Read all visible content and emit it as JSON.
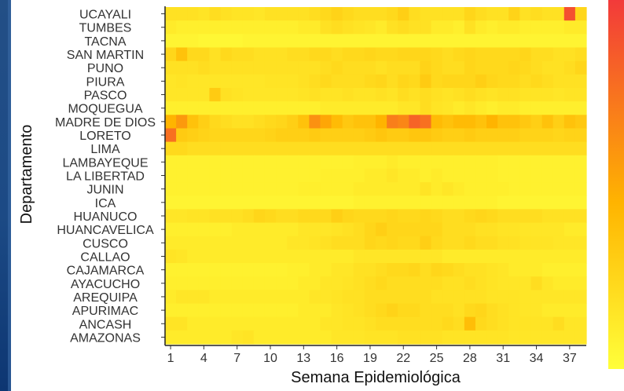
{
  "chart_data": {
    "type": "heatmap",
    "ylabel": "Departamento",
    "xlabel": "Semana Epidemiológica",
    "y_categories": [
      "UCAYALI",
      "TUMBES",
      "TACNA",
      "SAN MARTIN",
      "PUNO",
      "PIURA",
      "PASCO",
      "MOQUEGUA",
      "MADRE DE DIOS",
      "LORETO",
      "LIMA",
      "LAMBAYEQUE",
      "LA LIBERTAD",
      "JUNIN",
      "ICA",
      "HUANUCO",
      "HUANCAVELICA",
      "CUSCO",
      "CALLAO",
      "CAJAMARCA",
      "AYACUCHO",
      "AREQUIPA",
      "APURIMAC",
      "ANCASH",
      "AMAZONAS"
    ],
    "x_range": [
      1,
      38
    ],
    "x_ticks": [
      "1",
      "4",
      "7",
      "10",
      "13",
      "16",
      "19",
      "22",
      "25",
      "28",
      "31",
      "34",
      "37"
    ],
    "colors": {
      "low": "#ffff3a",
      "mid": "#ffb400",
      "high": "#f23a3a",
      "panel": "#1d4a85"
    },
    "values": [
      [
        0.22,
        0.22,
        0.22,
        0.2,
        0.25,
        0.22,
        0.2,
        0.2,
        0.18,
        0.22,
        0.22,
        0.22,
        0.22,
        0.25,
        0.28,
        0.32,
        0.28,
        0.25,
        0.25,
        0.25,
        0.28,
        0.35,
        0.25,
        0.22,
        0.22,
        0.22,
        0.22,
        0.3,
        0.25,
        0.22,
        0.22,
        0.32,
        0.22,
        0.25,
        0.22,
        0.22,
        0.92,
        0.3
      ],
      [
        0.15,
        0.12,
        0.12,
        0.12,
        0.12,
        0.12,
        0.12,
        0.12,
        0.12,
        0.12,
        0.12,
        0.12,
        0.15,
        0.15,
        0.22,
        0.25,
        0.22,
        0.2,
        0.18,
        0.15,
        0.22,
        0.25,
        0.22,
        0.22,
        0.15,
        0.15,
        0.12,
        0.22,
        0.15,
        0.12,
        0.15,
        0.15,
        0.12,
        0.12,
        0.12,
        0.12,
        0.15,
        0.15
      ],
      [
        0.08,
        0.08,
        0.08,
        0.06,
        0.06,
        0.06,
        0.06,
        0.08,
        0.08,
        0.08,
        0.08,
        0.08,
        0.08,
        0.08,
        0.08,
        0.08,
        0.08,
        0.08,
        0.08,
        0.08,
        0.08,
        0.08,
        0.08,
        0.08,
        0.08,
        0.08,
        0.08,
        0.08,
        0.08,
        0.08,
        0.08,
        0.08,
        0.08,
        0.08,
        0.08,
        0.08,
        0.08,
        0.08
      ],
      [
        0.3,
        0.45,
        0.28,
        0.28,
        0.22,
        0.28,
        0.25,
        0.25,
        0.22,
        0.22,
        0.22,
        0.25,
        0.25,
        0.28,
        0.28,
        0.25,
        0.28,
        0.28,
        0.3,
        0.28,
        0.28,
        0.3,
        0.3,
        0.3,
        0.28,
        0.25,
        0.28,
        0.3,
        0.28,
        0.28,
        0.28,
        0.28,
        0.3,
        0.25,
        0.25,
        0.22,
        0.22,
        0.25
      ],
      [
        0.22,
        0.22,
        0.22,
        0.25,
        0.22,
        0.22,
        0.22,
        0.22,
        0.22,
        0.22,
        0.22,
        0.22,
        0.22,
        0.22,
        0.25,
        0.28,
        0.25,
        0.25,
        0.25,
        0.22,
        0.25,
        0.25,
        0.25,
        0.32,
        0.28,
        0.25,
        0.25,
        0.3,
        0.28,
        0.28,
        0.28,
        0.3,
        0.28,
        0.25,
        0.22,
        0.22,
        0.25,
        0.3
      ],
      [
        0.18,
        0.2,
        0.18,
        0.18,
        0.18,
        0.18,
        0.18,
        0.18,
        0.18,
        0.2,
        0.2,
        0.2,
        0.22,
        0.25,
        0.28,
        0.25,
        0.25,
        0.25,
        0.28,
        0.3,
        0.25,
        0.3,
        0.28,
        0.38,
        0.28,
        0.3,
        0.3,
        0.3,
        0.35,
        0.3,
        0.28,
        0.28,
        0.25,
        0.28,
        0.25,
        0.22,
        0.22,
        0.22
      ],
      [
        0.18,
        0.18,
        0.18,
        0.18,
        0.38,
        0.22,
        0.2,
        0.18,
        0.18,
        0.18,
        0.18,
        0.18,
        0.2,
        0.22,
        0.2,
        0.2,
        0.22,
        0.2,
        0.2,
        0.22,
        0.2,
        0.25,
        0.22,
        0.25,
        0.22,
        0.2,
        0.22,
        0.25,
        0.22,
        0.2,
        0.22,
        0.22,
        0.2,
        0.2,
        0.2,
        0.18,
        0.2,
        0.2
      ],
      [
        0.12,
        0.12,
        0.12,
        0.12,
        0.12,
        0.12,
        0.12,
        0.12,
        0.12,
        0.12,
        0.12,
        0.12,
        0.12,
        0.12,
        0.15,
        0.15,
        0.15,
        0.15,
        0.15,
        0.15,
        0.15,
        0.18,
        0.18,
        0.25,
        0.2,
        0.18,
        0.15,
        0.18,
        0.15,
        0.12,
        0.15,
        0.15,
        0.12,
        0.12,
        0.12,
        0.12,
        0.12,
        0.12
      ],
      [
        0.55,
        0.65,
        0.45,
        0.35,
        0.28,
        0.25,
        0.22,
        0.22,
        0.25,
        0.28,
        0.3,
        0.35,
        0.45,
        0.68,
        0.6,
        0.5,
        0.4,
        0.45,
        0.45,
        0.55,
        0.75,
        0.72,
        0.85,
        0.8,
        0.5,
        0.45,
        0.5,
        0.5,
        0.45,
        0.55,
        0.45,
        0.45,
        0.4,
        0.35,
        0.45,
        0.35,
        0.45,
        0.4
      ],
      [
        0.8,
        0.38,
        0.35,
        0.32,
        0.3,
        0.3,
        0.3,
        0.3,
        0.3,
        0.32,
        0.35,
        0.35,
        0.35,
        0.38,
        0.35,
        0.35,
        0.35,
        0.35,
        0.38,
        0.42,
        0.38,
        0.38,
        0.42,
        0.42,
        0.38,
        0.35,
        0.35,
        0.38,
        0.35,
        0.35,
        0.35,
        0.35,
        0.32,
        0.32,
        0.32,
        0.3,
        0.32,
        0.32
      ],
      [
        0.28,
        0.28,
        0.25,
        0.25,
        0.25,
        0.25,
        0.25,
        0.25,
        0.25,
        0.25,
        0.25,
        0.25,
        0.25,
        0.25,
        0.25,
        0.25,
        0.25,
        0.25,
        0.25,
        0.25,
        0.25,
        0.25,
        0.25,
        0.25,
        0.25,
        0.25,
        0.25,
        0.25,
        0.25,
        0.25,
        0.25,
        0.25,
        0.25,
        0.25,
        0.25,
        0.25,
        0.25,
        0.25
      ],
      [
        0.1,
        0.1,
        0.1,
        0.1,
        0.1,
        0.1,
        0.1,
        0.1,
        0.1,
        0.1,
        0.1,
        0.1,
        0.1,
        0.1,
        0.1,
        0.1,
        0.1,
        0.12,
        0.12,
        0.12,
        0.15,
        0.12,
        0.12,
        0.12,
        0.12,
        0.12,
        0.12,
        0.12,
        0.12,
        0.12,
        0.1,
        0.1,
        0.1,
        0.1,
        0.1,
        0.1,
        0.1,
        0.1
      ],
      [
        0.1,
        0.1,
        0.1,
        0.1,
        0.1,
        0.1,
        0.1,
        0.1,
        0.1,
        0.1,
        0.1,
        0.1,
        0.1,
        0.1,
        0.12,
        0.12,
        0.12,
        0.12,
        0.15,
        0.15,
        0.18,
        0.15,
        0.15,
        0.12,
        0.15,
        0.12,
        0.12,
        0.12,
        0.12,
        0.12,
        0.1,
        0.1,
        0.1,
        0.1,
        0.1,
        0.1,
        0.1,
        0.1
      ],
      [
        0.1,
        0.1,
        0.1,
        0.1,
        0.1,
        0.1,
        0.1,
        0.1,
        0.1,
        0.1,
        0.1,
        0.1,
        0.12,
        0.12,
        0.12,
        0.12,
        0.12,
        0.15,
        0.15,
        0.15,
        0.15,
        0.15,
        0.15,
        0.2,
        0.15,
        0.18,
        0.15,
        0.12,
        0.12,
        0.12,
        0.12,
        0.1,
        0.1,
        0.1,
        0.1,
        0.1,
        0.1,
        0.1
      ],
      [
        0.08,
        0.08,
        0.08,
        0.08,
        0.08,
        0.08,
        0.08,
        0.08,
        0.08,
        0.08,
        0.08,
        0.08,
        0.08,
        0.08,
        0.08,
        0.08,
        0.08,
        0.1,
        0.1,
        0.1,
        0.1,
        0.1,
        0.1,
        0.1,
        0.1,
        0.1,
        0.1,
        0.1,
        0.1,
        0.1,
        0.08,
        0.08,
        0.08,
        0.08,
        0.08,
        0.08,
        0.08,
        0.08
      ],
      [
        0.18,
        0.18,
        0.2,
        0.2,
        0.22,
        0.22,
        0.22,
        0.25,
        0.3,
        0.28,
        0.25,
        0.25,
        0.28,
        0.28,
        0.28,
        0.35,
        0.3,
        0.28,
        0.28,
        0.28,
        0.3,
        0.28,
        0.28,
        0.3,
        0.28,
        0.25,
        0.25,
        0.28,
        0.3,
        0.28,
        0.25,
        0.25,
        0.25,
        0.25,
        0.22,
        0.22,
        0.22,
        0.22
      ],
      [
        0.12,
        0.12,
        0.12,
        0.12,
        0.12,
        0.12,
        0.15,
        0.15,
        0.15,
        0.15,
        0.15,
        0.15,
        0.18,
        0.18,
        0.18,
        0.2,
        0.22,
        0.25,
        0.3,
        0.35,
        0.3,
        0.3,
        0.3,
        0.3,
        0.3,
        0.25,
        0.25,
        0.25,
        0.22,
        0.22,
        0.2,
        0.2,
        0.18,
        0.18,
        0.18,
        0.18,
        0.15,
        0.15
      ],
      [
        0.15,
        0.15,
        0.15,
        0.15,
        0.15,
        0.15,
        0.15,
        0.15,
        0.15,
        0.15,
        0.15,
        0.18,
        0.18,
        0.2,
        0.22,
        0.25,
        0.25,
        0.25,
        0.3,
        0.28,
        0.3,
        0.28,
        0.28,
        0.35,
        0.28,
        0.25,
        0.25,
        0.28,
        0.25,
        0.25,
        0.22,
        0.22,
        0.2,
        0.2,
        0.2,
        0.18,
        0.18,
        0.18
      ],
      [
        0.2,
        0.18,
        0.15,
        0.15,
        0.15,
        0.15,
        0.15,
        0.15,
        0.15,
        0.15,
        0.15,
        0.15,
        0.15,
        0.15,
        0.15,
        0.15,
        0.15,
        0.18,
        0.18,
        0.18,
        0.18,
        0.18,
        0.18,
        0.18,
        0.18,
        0.15,
        0.15,
        0.15,
        0.15,
        0.15,
        0.15,
        0.15,
        0.15,
        0.15,
        0.15,
        0.15,
        0.15,
        0.15
      ],
      [
        0.1,
        0.1,
        0.1,
        0.1,
        0.1,
        0.1,
        0.1,
        0.1,
        0.1,
        0.1,
        0.1,
        0.12,
        0.12,
        0.15,
        0.15,
        0.18,
        0.18,
        0.22,
        0.22,
        0.25,
        0.28,
        0.28,
        0.3,
        0.25,
        0.3,
        0.28,
        0.25,
        0.22,
        0.22,
        0.2,
        0.18,
        0.15,
        0.15,
        0.15,
        0.12,
        0.12,
        0.12,
        0.12
      ],
      [
        0.12,
        0.12,
        0.12,
        0.12,
        0.12,
        0.12,
        0.12,
        0.12,
        0.12,
        0.12,
        0.12,
        0.12,
        0.15,
        0.15,
        0.18,
        0.18,
        0.2,
        0.22,
        0.25,
        0.28,
        0.25,
        0.25,
        0.25,
        0.25,
        0.25,
        0.22,
        0.22,
        0.25,
        0.22,
        0.2,
        0.18,
        0.18,
        0.18,
        0.25,
        0.18,
        0.15,
        0.15,
        0.15
      ],
      [
        0.15,
        0.18,
        0.18,
        0.18,
        0.15,
        0.15,
        0.15,
        0.15,
        0.15,
        0.15,
        0.15,
        0.15,
        0.15,
        0.18,
        0.18,
        0.2,
        0.22,
        0.22,
        0.25,
        0.25,
        0.25,
        0.25,
        0.25,
        0.25,
        0.22,
        0.22,
        0.22,
        0.22,
        0.22,
        0.2,
        0.2,
        0.2,
        0.18,
        0.18,
        0.18,
        0.18,
        0.18,
        0.18
      ],
      [
        0.12,
        0.12,
        0.12,
        0.12,
        0.12,
        0.12,
        0.12,
        0.12,
        0.12,
        0.12,
        0.12,
        0.12,
        0.15,
        0.15,
        0.15,
        0.18,
        0.2,
        0.22,
        0.25,
        0.28,
        0.32,
        0.28,
        0.28,
        0.25,
        0.25,
        0.25,
        0.22,
        0.28,
        0.3,
        0.25,
        0.22,
        0.2,
        0.18,
        0.18,
        0.15,
        0.15,
        0.15,
        0.15
      ],
      [
        0.2,
        0.2,
        0.15,
        0.15,
        0.15,
        0.15,
        0.15,
        0.15,
        0.15,
        0.15,
        0.15,
        0.15,
        0.15,
        0.15,
        0.18,
        0.18,
        0.2,
        0.2,
        0.22,
        0.25,
        0.25,
        0.25,
        0.25,
        0.25,
        0.25,
        0.28,
        0.25,
        0.48,
        0.28,
        0.25,
        0.22,
        0.2,
        0.2,
        0.2,
        0.2,
        0.25,
        0.18,
        0.18
      ],
      [
        0.15,
        0.15,
        0.15,
        0.15,
        0.15,
        0.15,
        0.18,
        0.2,
        0.15,
        0.15,
        0.15,
        0.15,
        0.15,
        0.15,
        0.15,
        0.18,
        0.18,
        0.18,
        0.2,
        0.2,
        0.2,
        0.22,
        0.22,
        0.22,
        0.22,
        0.2,
        0.2,
        0.2,
        0.2,
        0.2,
        0.2,
        0.18,
        0.18,
        0.18,
        0.18,
        0.18,
        0.18,
        0.18
      ]
    ]
  }
}
